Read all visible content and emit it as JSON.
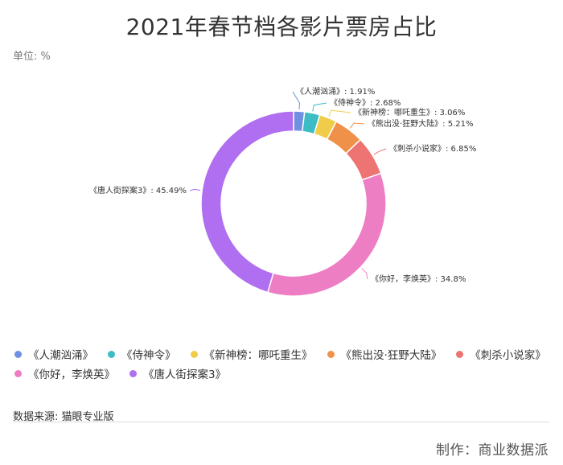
{
  "title": "2021年春节档各影片票房占比",
  "unit": "单位: %",
  "source": "数据来源: 猫眼专业版",
  "maker": "制作：商业数据派",
  "chart_data": {
    "type": "pie",
    "series": [
      {
        "name": "《人潮汹涌》",
        "value": 1.91,
        "label": "《人潮汹涌》: 1.91%",
        "color": "#6f8fe0"
      },
      {
        "name": "《侍神令》",
        "value": 2.68,
        "label": "《侍神令》: 2.68%",
        "color": "#3cbcc4"
      },
      {
        "name": "《新神榜：哪吒重生》",
        "value": 3.06,
        "label": "《新神榜：哪吒重生》: 3.06%",
        "color": "#f0cc4a"
      },
      {
        "name": "《熊出没·狂野大陆》",
        "value": 5.21,
        "label": "《熊出没·狂野大陆》: 5.21%",
        "color": "#f0914a"
      },
      {
        "name": "《刺杀小说家》",
        "value": 6.85,
        "label": "《刺杀小说家》: 6.85%",
        "color": "#ee7373"
      },
      {
        "name": "《你好，李焕英》",
        "value": 34.8,
        "label": "《你好，李焕英》: 34.8%",
        "color": "#ee7ec4"
      },
      {
        "name": "《唐人街探案3》",
        "value": 45.49,
        "label": "《唐人街探案3》: 45.49%",
        "color": "#b06ef0"
      }
    ]
  },
  "legend": {
    "rows": [
      [
        {
          "label": "《人潮汹涌》",
          "color": "#6f8fe0"
        },
        {
          "label": "《侍神令》",
          "color": "#3cbcc4"
        },
        {
          "label": "《新神榜：哪吒重生》",
          "color": "#f0cc4a"
        },
        {
          "label": "《熊出没·狂野大陆》",
          "color": "#f0914a"
        },
        {
          "label": "《刺杀小说家》",
          "color": "#ee7373"
        }
      ],
      [
        {
          "label": "《你好，李焕英》",
          "color": "#ee7ec4"
        },
        {
          "label": "《唐人街探案3》",
          "color": "#b06ef0"
        }
      ]
    ]
  }
}
